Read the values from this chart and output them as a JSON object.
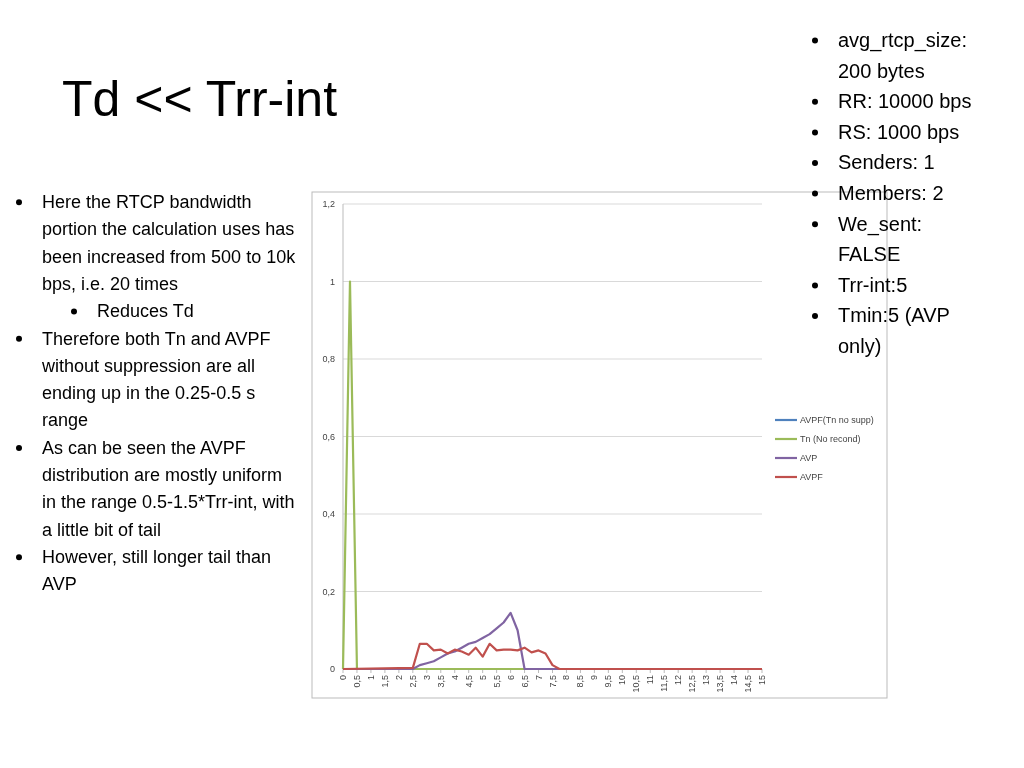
{
  "chart_data": {
    "type": "line",
    "title": "Td << Trr-int",
    "annotations": [
      "Here the RTCP bandwidth portion the calculation uses has been increased from 500 to 10k bps, i.e. 20 times",
      "Reduces Td",
      "Therefore both Tn and AVPF without suppression are all ending up in the 0.25-0.5 s range",
      "As can be seen the AVPF distribution are mostly uniform in the range 0.5-1.5*Trr-int, with a little bit of tail",
      "However, still longer tail than AVP",
      "avg_rtcp_size: 200 bytes",
      "RR: 10000 bps",
      "RS: 1000 bps",
      "Senders: 1",
      "Members: 2",
      "We_sent: FALSE",
      "Trr-int:5",
      "Tmin:5 (AVP only)"
    ],
    "xlim": [
      0,
      15
    ],
    "xticks": [
      0,
      {
        "value": 0.5,
        "label": "0,5"
      },
      1,
      {
        "value": 1.5,
        "label": "1,5"
      },
      2,
      {
        "value": 2.5,
        "label": "2,5"
      },
      3,
      {
        "value": 3.5,
        "label": "3,5"
      },
      4,
      {
        "value": 4.5,
        "label": "4,5"
      },
      5,
      {
        "value": 5.5,
        "label": "5,5"
      },
      6,
      {
        "value": 6.5,
        "label": "6,5"
      },
      7,
      {
        "value": 7.5,
        "label": "7,5"
      },
      8,
      {
        "value": 8.5,
        "label": "8,5"
      },
      9,
      {
        "value": 9.5,
        "label": "9,5"
      },
      10,
      {
        "value": 10.5,
        "label": "10,5"
      },
      11,
      {
        "value": 11.5,
        "label": "11,5"
      },
      12,
      {
        "value": 12.5,
        "label": "12,5"
      },
      13,
      {
        "value": 13.5,
        "label": "13,5"
      },
      14,
      {
        "value": 14.5,
        "label": "14,5"
      },
      15
    ],
    "ylim": [
      0,
      1.2
    ],
    "yticks": [
      0,
      {
        "value": 0.2,
        "label": "0,2"
      },
      {
        "value": 0.4,
        "label": "0,4"
      },
      {
        "value": 0.6,
        "label": "0,6"
      },
      {
        "value": 0.8,
        "label": "0,8"
      },
      1,
      {
        "value": 1.2,
        "label": "1,2"
      }
    ],
    "grid": "y",
    "legend": "right",
    "marker": "none",
    "line_style": "solid",
    "series": [
      {
        "name": "AVPF(Tn no supp)",
        "color": "#4f81bd"
      },
      {
        "name": "Tn (No recond)",
        "color": "#9bbb59",
        "x": [
          0,
          0.25,
          0.5,
          15
        ],
        "values": [
          0,
          1,
          0,
          0
        ]
      },
      {
        "name": "AVP",
        "color": "#8064a2",
        "x": [
          0,
          2.5,
          2.75,
          3,
          3.25,
          3.5,
          3.75,
          4,
          4.25,
          4.5,
          4.75,
          5,
          5.25,
          5.5,
          5.75,
          6,
          6.25,
          6.5,
          15
        ],
        "values": [
          0,
          0,
          0.01,
          0.015,
          0.02,
          0.03,
          0.04,
          0.045,
          0.055,
          0.065,
          0.07,
          0.08,
          0.09,
          0.105,
          0.12,
          0.145,
          0.1,
          0,
          0
        ]
      },
      {
        "name": "AVPF",
        "color": "#c0504d",
        "x": [
          0,
          2.5,
          2.75,
          3,
          3.25,
          3.5,
          3.75,
          4,
          4.25,
          4.5,
          4.75,
          5,
          5.25,
          5.5,
          5.75,
          6,
          6.25,
          6.5,
          6.75,
          7,
          7.25,
          7.5,
          7.75,
          15
        ],
        "values": [
          0,
          0.003,
          0.065,
          0.065,
          0.048,
          0.05,
          0.04,
          0.05,
          0.045,
          0.037,
          0.055,
          0.032,
          0.065,
          0.048,
          0.05,
          0.05,
          0.048,
          0.055,
          0.043,
          0.048,
          0.04,
          0.01,
          0,
          0
        ]
      }
    ]
  }
}
